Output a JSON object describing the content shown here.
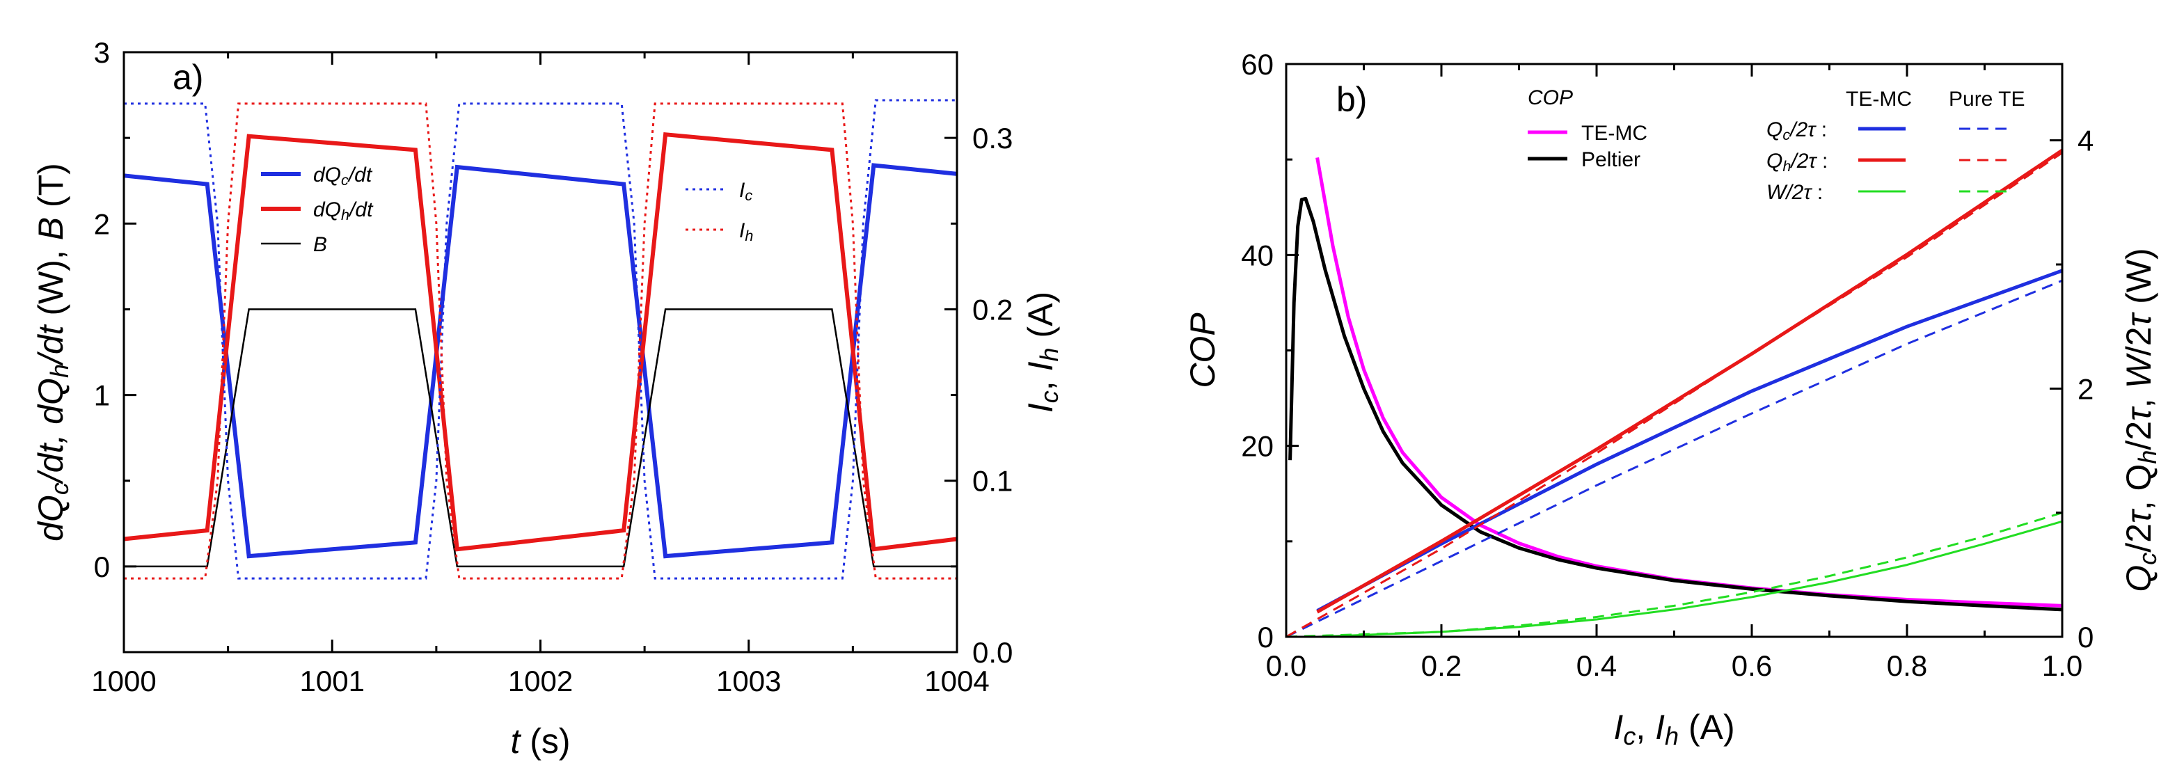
{
  "chart_data": [
    {
      "type": "line",
      "panel_label": "a)",
      "xlabel": {
        "var": "t",
        "unit": " (s)"
      },
      "ylabel": {
        "parts": [
          {
            "t": "dQ",
            "s": "italic"
          },
          {
            "t": "c",
            "s": "italic-sub"
          },
          {
            "t": "/dt, ",
            "s": "italic"
          },
          {
            "t": "dQ",
            "s": "italic"
          },
          {
            "t": "h",
            "s": "italic-sub"
          },
          {
            "t": "/dt",
            "s": "italic"
          },
          {
            "t": " (W), ",
            "s": "normal"
          },
          {
            "t": "B",
            "s": "italic"
          },
          {
            "t": " (T)",
            "s": "normal"
          }
        ]
      },
      "y2label": {
        "parts": [
          {
            "t": "I",
            "s": "italic"
          },
          {
            "t": "c",
            "s": "italic-sub"
          },
          {
            "t": ", ",
            "s": "normal"
          },
          {
            "t": "I",
            "s": "italic"
          },
          {
            "t": "h",
            "s": "italic-sub"
          },
          {
            "t": " (A)",
            "s": "normal"
          }
        ]
      },
      "xlim": [
        1000,
        1004
      ],
      "ylim": [
        -0.5,
        3
      ],
      "y2lim": [
        0,
        0.35
      ],
      "xticks": [
        1000,
        1001,
        1002,
        1003,
        1004
      ],
      "yticks": [
        0,
        1,
        2,
        3
      ],
      "y2ticks": [
        0.0,
        0.1,
        0.2,
        0.3
      ],
      "xtick_labels": [
        "1000",
        "1001",
        "1002",
        "1003",
        "1004"
      ],
      "ytick_labels": [
        "0",
        "1",
        "2",
        "3"
      ],
      "y2tick_labels": [
        "0.0",
        "0.1",
        "0.2",
        "0.3"
      ],
      "series": [
        {
          "name": "dQc/dt",
          "axis": "left",
          "color": "#1f2fe0",
          "dash": "solid",
          "width": 6,
          "x": [
            1000,
            1000.4,
            1000.6,
            1001.4,
            1001.6,
            1002.4,
            1002.6,
            1003.4,
            1003.6,
            1004
          ],
          "y": [
            2.28,
            2.23,
            0.06,
            0.14,
            2.33,
            2.23,
            0.06,
            0.14,
            2.34,
            2.29
          ]
        },
        {
          "name": "dQh/dt",
          "axis": "left",
          "color": "#e81818",
          "dash": "solid",
          "width": 6,
          "x": [
            1000,
            1000.4,
            1000.6,
            1001.4,
            1001.6,
            1002.4,
            1002.6,
            1003.4,
            1003.6,
            1004
          ],
          "y": [
            0.16,
            0.21,
            2.51,
            2.43,
            0.1,
            0.21,
            2.52,
            2.43,
            0.1,
            0.16
          ]
        },
        {
          "name": "B",
          "axis": "left",
          "color": "#000000",
          "dash": "solid",
          "width": 2.5,
          "x": [
            1000,
            1000.4,
            1000.6,
            1001.4,
            1001.6,
            1002.4,
            1002.6,
            1003.4,
            1003.6,
            1004
          ],
          "y": [
            0,
            0,
            1.5,
            1.5,
            0,
            0,
            1.5,
            1.5,
            0,
            0
          ]
        },
        {
          "name": "Ic",
          "axis": "right",
          "color": "#1f2fe0",
          "dash": "dot",
          "width": 3,
          "x": [
            1000,
            1000.39,
            1000.45,
            1000.5,
            1000.55,
            1001.45,
            1001.5,
            1001.55,
            1001.61,
            1002.39,
            1002.45,
            1002.5,
            1002.55,
            1003.45,
            1003.5,
            1003.55,
            1003.61,
            1004
          ],
          "y": [
            0.32,
            0.32,
            0.25,
            0.1,
            0.043,
            0.043,
            0.1,
            0.25,
            0.32,
            0.32,
            0.25,
            0.1,
            0.043,
            0.043,
            0.1,
            0.25,
            0.322,
            0.322
          ]
        },
        {
          "name": "Ih",
          "axis": "right",
          "color": "#e81818",
          "dash": "dot",
          "width": 3,
          "x": [
            1000,
            1000.39,
            1000.45,
            1000.5,
            1000.55,
            1001.45,
            1001.5,
            1001.55,
            1001.61,
            1002.39,
            1002.45,
            1002.5,
            1002.55,
            1003.45,
            1003.5,
            1003.55,
            1003.61,
            1004
          ],
          "y": [
            0.043,
            0.043,
            0.1,
            0.25,
            0.32,
            0.32,
            0.25,
            0.1,
            0.043,
            0.043,
            0.1,
            0.25,
            0.32,
            0.32,
            0.25,
            0.1,
            0.043,
            0.043
          ]
        }
      ],
      "legend_left": [
        {
          "series": "dQc/dt",
          "parts": [
            {
              "t": "dQ",
              "s": "italic"
            },
            {
              "t": "c",
              "s": "italic-sub"
            },
            {
              "t": "/dt",
              "s": "italic"
            }
          ]
        },
        {
          "series": "dQh/dt",
          "parts": [
            {
              "t": "dQ",
              "s": "italic"
            },
            {
              "t": "h",
              "s": "italic-sub"
            },
            {
              "t": "/dt",
              "s": "italic"
            }
          ]
        },
        {
          "series": "B",
          "parts": [
            {
              "t": "B",
              "s": "italic"
            }
          ]
        }
      ],
      "legend_right": [
        {
          "series": "Ic",
          "parts": [
            {
              "t": "I",
              "s": "italic"
            },
            {
              "t": "c",
              "s": "italic-sub"
            }
          ]
        },
        {
          "series": "Ih",
          "parts": [
            {
              "t": "I",
              "s": "italic"
            },
            {
              "t": "h",
              "s": "italic-sub"
            }
          ]
        }
      ]
    },
    {
      "type": "line",
      "panel_label": "b)",
      "xlabel": {
        "parts": [
          {
            "t": "I",
            "s": "italic"
          },
          {
            "t": "c",
            "s": "italic-sub"
          },
          {
            "t": ", ",
            "s": "normal"
          },
          {
            "t": "I",
            "s": "italic"
          },
          {
            "t": "h",
            "s": "italic-sub"
          },
          {
            "t": " (A)",
            "s": "normal"
          }
        ]
      },
      "ylabel": "COP",
      "y2label": {
        "parts": [
          {
            "t": "Q",
            "s": "italic"
          },
          {
            "t": "c",
            "s": "italic-sub"
          },
          {
            "t": "/2",
            "s": "normal"
          },
          {
            "t": "τ",
            "s": "italic"
          },
          {
            "t": ", Q",
            "s": "normal"
          },
          {
            "t": "h",
            "s": "italic-sub"
          },
          {
            "t": "/2",
            "s": "normal"
          },
          {
            "t": "τ",
            "s": "italic"
          },
          {
            "t": ", ",
            "s": "normal"
          },
          {
            "t": "W",
            "s": "italic"
          },
          {
            "t": "/2",
            "s": "normal"
          },
          {
            "t": "τ",
            "s": "italic"
          },
          {
            "t": " (W)",
            "s": "normal"
          }
        ]
      },
      "xlim": [
        0,
        1
      ],
      "ylim": [
        0,
        60
      ],
      "y2lim": [
        0,
        4.615
      ],
      "xticks": [
        0.0,
        0.2,
        0.4,
        0.6,
        0.8,
        1.0
      ],
      "yticks": [
        0,
        20,
        40,
        60
      ],
      "y2ticks": [
        0,
        2,
        4
      ],
      "xtick_labels": [
        "0.0",
        "0.2",
        "0.4",
        "0.6",
        "0.8",
        "1.0"
      ],
      "ytick_labels": [
        "0",
        "20",
        "40",
        "60"
      ],
      "y2tick_labels": [
        "0",
        "2",
        "4"
      ],
      "series": [
        {
          "name": "COP TE-MC",
          "axis": "left",
          "color": "#ff00ff",
          "dash": "solid",
          "width": 5,
          "x": [
            0.04,
            0.06,
            0.08,
            0.1,
            0.125,
            0.15,
            0.2,
            0.25,
            0.3,
            0.35,
            0.4,
            0.5,
            0.6,
            0.7,
            0.8,
            0.9,
            1.0
          ],
          "y": [
            50.2,
            41.0,
            33.5,
            28.0,
            22.9,
            19.3,
            14.6,
            11.7,
            9.8,
            8.4,
            7.4,
            6.0,
            5.1,
            4.4,
            3.9,
            3.55,
            3.25
          ]
        },
        {
          "name": "COP Peltier",
          "axis": "left",
          "color": "#000000",
          "dash": "solid",
          "width": 5,
          "x": [
            0.005,
            0.01,
            0.015,
            0.02,
            0.025,
            0.035,
            0.05,
            0.075,
            0.1,
            0.125,
            0.15,
            0.2,
            0.25,
            0.3,
            0.35,
            0.4,
            0.5,
            0.6,
            0.7,
            0.8,
            0.9,
            1.0
          ],
          "y": [
            18.5,
            35.0,
            43.0,
            45.8,
            45.9,
            43.5,
            38.5,
            31.5,
            26.0,
            21.5,
            18.2,
            13.8,
            11.0,
            9.3,
            8.1,
            7.2,
            5.9,
            5.0,
            4.3,
            3.7,
            3.25,
            2.85
          ]
        },
        {
          "name": "Qc/2tau TE-MC",
          "axis": "right",
          "color": "#1f2fe0",
          "dash": "solid",
          "width": 5,
          "x": [
            0.04,
            0.2,
            0.4,
            0.6,
            0.8,
            1.0
          ],
          "y": [
            0.21,
            0.75,
            1.39,
            1.98,
            2.5,
            2.95
          ]
        },
        {
          "name": "Qh/2tau TE-MC",
          "axis": "right",
          "color": "#e81818",
          "dash": "solid",
          "width": 5,
          "x": [
            0.04,
            0.2,
            0.4,
            0.6,
            0.8,
            1.0
          ],
          "y": [
            0.2,
            0.77,
            1.51,
            2.28,
            3.08,
            3.92
          ]
        },
        {
          "name": "W/2tau TE-MC",
          "axis": "right",
          "color": "#22dd22",
          "dash": "solid",
          "width": 3,
          "x": [
            0.04,
            0.2,
            0.3,
            0.4,
            0.5,
            0.6,
            0.7,
            0.8,
            0.9,
            1.0
          ],
          "y": [
            0.0,
            0.04,
            0.08,
            0.14,
            0.22,
            0.32,
            0.44,
            0.58,
            0.75,
            0.93
          ]
        },
        {
          "name": "Qc/2tau Pure TE",
          "axis": "right",
          "color": "#1f2fe0",
          "dash": "dash",
          "width": 3,
          "x": [
            0.0,
            0.2,
            0.4,
            0.6,
            0.8,
            1.0
          ],
          "y": [
            0.0,
            0.61,
            1.22,
            1.8,
            2.36,
            2.87
          ]
        },
        {
          "name": "Qh/2tau Pure TE",
          "axis": "right",
          "color": "#e81818",
          "dash": "dash",
          "width": 3,
          "x": [
            0.0,
            0.2,
            0.4,
            0.6,
            0.8,
            1.0
          ],
          "y": [
            0.0,
            0.71,
            1.48,
            2.28,
            3.06,
            3.9
          ]
        },
        {
          "name": "W/2tau Pure TE",
          "axis": "right",
          "color": "#22dd22",
          "dash": "dash",
          "width": 3,
          "x": [
            0.0,
            0.2,
            0.3,
            0.4,
            0.5,
            0.6,
            0.7,
            0.8,
            0.9,
            1.0
          ],
          "y": [
            0.0,
            0.04,
            0.09,
            0.16,
            0.25,
            0.36,
            0.49,
            0.64,
            0.81,
            1.0
          ]
        }
      ],
      "legend_cop_title": "COP",
      "legend_cop": [
        {
          "series": "COP TE-MC",
          "label": "TE-MC"
        },
        {
          "series": "COP Peltier",
          "label": "Peltier"
        }
      ],
      "legend_heat_titles": [
        "TE-MC",
        "Pure TE"
      ],
      "legend_heat": [
        {
          "parts": [
            {
              "t": "Q",
              "s": "italic"
            },
            {
              "t": "c",
              "s": "italic-sub"
            },
            {
              "t": "/2",
              "s": "italic"
            },
            {
              "t": "τ",
              "s": "italic"
            },
            {
              "t": " :",
              "s": "normal"
            }
          ],
          "solid": "Qc/2tau TE-MC",
          "dashed": "Qc/2tau Pure TE"
        },
        {
          "parts": [
            {
              "t": "Q",
              "s": "italic"
            },
            {
              "t": "h",
              "s": "italic-sub"
            },
            {
              "t": "/2",
              "s": "italic"
            },
            {
              "t": "τ",
              "s": "italic"
            },
            {
              "t": " :",
              "s": "normal"
            }
          ],
          "solid": "Qh/2tau TE-MC",
          "dashed": "Qh/2tau Pure TE"
        },
        {
          "parts": [
            {
              "t": "W",
              "s": "italic"
            },
            {
              "t": "/2",
              "s": "italic"
            },
            {
              "t": "τ",
              "s": "italic"
            },
            {
              "t": " :",
              "s": "normal"
            }
          ],
          "solid": "W/2tau TE-MC",
          "dashed": "W/2tau Pure TE"
        }
      ]
    }
  ]
}
